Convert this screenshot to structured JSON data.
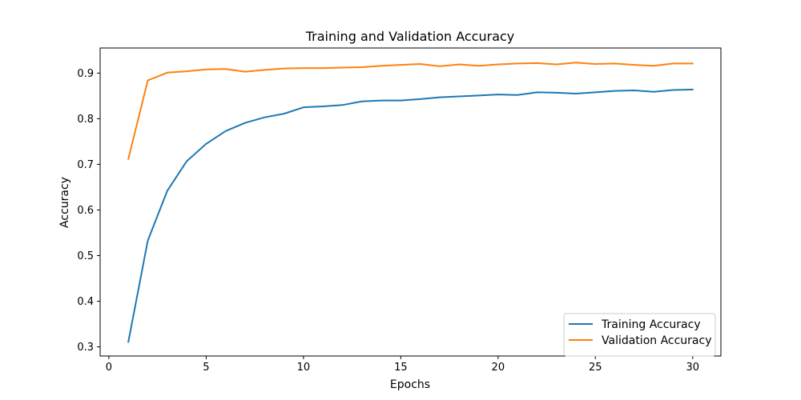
{
  "chart_data": {
    "type": "line",
    "title": "Training and Validation Accuracy",
    "xlabel": "Epochs",
    "ylabel": "Accuracy",
    "xlim": [
      -0.45,
      31.45
    ],
    "ylim": [
      0.28,
      0.955
    ],
    "xticks": [
      0,
      5,
      10,
      15,
      20,
      25,
      30
    ],
    "yticks": [
      0.3,
      0.4,
      0.5,
      0.6,
      0.7,
      0.8,
      0.9
    ],
    "xtick_labels": [
      "0",
      "5",
      "10",
      "15",
      "20",
      "25",
      "30"
    ],
    "ytick_labels": [
      "0.3",
      "0.4",
      "0.5",
      "0.6",
      "0.7",
      "0.8",
      "0.9"
    ],
    "grid": false,
    "legend_position": "bottom-right",
    "x": [
      1,
      2,
      3,
      4,
      5,
      6,
      7,
      8,
      9,
      10,
      11,
      12,
      13,
      14,
      15,
      16,
      17,
      18,
      19,
      20,
      21,
      22,
      23,
      24,
      25,
      26,
      27,
      28,
      29,
      30
    ],
    "series": [
      {
        "name": "Training Accuracy",
        "color": "#1f77b4",
        "values": [
          0.311,
          0.533,
          0.642,
          0.707,
          0.745,
          0.773,
          0.791,
          0.803,
          0.811,
          0.825,
          0.827,
          0.83,
          0.838,
          0.84,
          0.84,
          0.843,
          0.847,
          0.849,
          0.851,
          0.853,
          0.852,
          0.858,
          0.857,
          0.855,
          0.858,
          0.861,
          0.862,
          0.859,
          0.863,
          0.864
        ]
      },
      {
        "name": "Validation Accuracy",
        "color": "#ff7f0e",
        "values": [
          0.712,
          0.884,
          0.901,
          0.904,
          0.908,
          0.909,
          0.903,
          0.907,
          0.91,
          0.911,
          0.911,
          0.912,
          0.913,
          0.916,
          0.918,
          0.92,
          0.915,
          0.919,
          0.916,
          0.919,
          0.921,
          0.922,
          0.919,
          0.923,
          0.92,
          0.921,
          0.918,
          0.916,
          0.921,
          0.921
        ]
      }
    ]
  }
}
